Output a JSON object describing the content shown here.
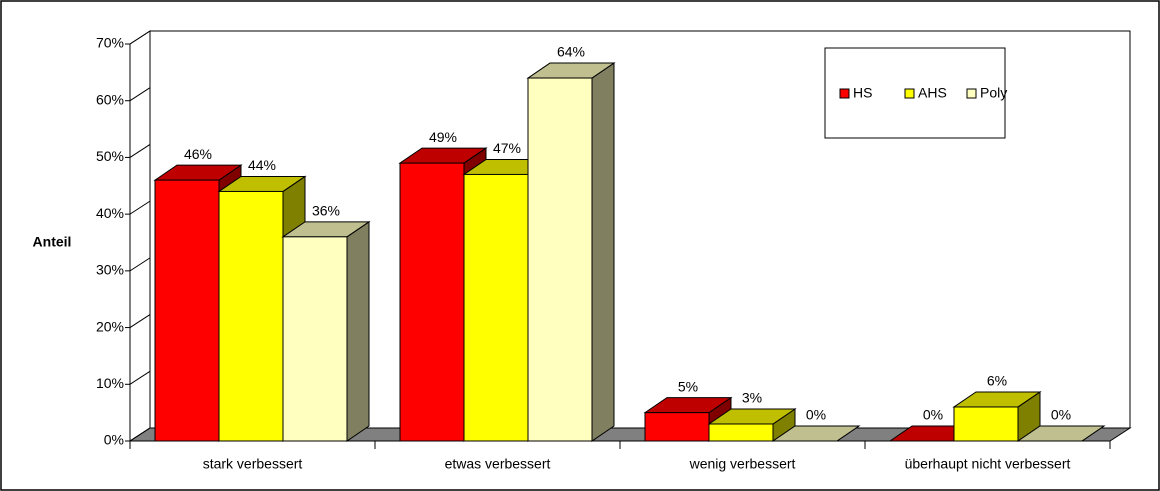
{
  "chart_data": {
    "type": "bar",
    "y_label": "Anteil",
    "categories": [
      "stark verbessert",
      "etwas verbessert",
      "wenig verbessert",
      "überhaupt nicht verbessert"
    ],
    "series": [
      {
        "name": "HS",
        "color": "#ff0000",
        "values": [
          46,
          49,
          5,
          0
        ],
        "value_labels": [
          "46%",
          "49%",
          "5%",
          "0%"
        ]
      },
      {
        "name": "AHS",
        "color": "#ffff00",
        "values": [
          44,
          47,
          3,
          6
        ],
        "value_labels": [
          "44%",
          "47%",
          "3%",
          "6%"
        ]
      },
      {
        "name": "Poly",
        "color": "#ffffc0",
        "values": [
          36,
          64,
          0,
          0
        ],
        "value_labels": [
          "36%",
          "64%",
          "0%",
          "0%"
        ]
      }
    ],
    "ylim": [
      0,
      70
    ],
    "yticks": [
      {
        "value": 0,
        "label": "0%"
      },
      {
        "value": 10,
        "label": "10%"
      },
      {
        "value": 20,
        "label": "20%"
      },
      {
        "value": 30,
        "label": "30%"
      },
      {
        "value": 40,
        "label": "40%"
      },
      {
        "value": 50,
        "label": "50%"
      },
      {
        "value": 60,
        "label": "60%"
      },
      {
        "value": 70,
        "label": "70%"
      }
    ],
    "legend": "top-right"
  }
}
